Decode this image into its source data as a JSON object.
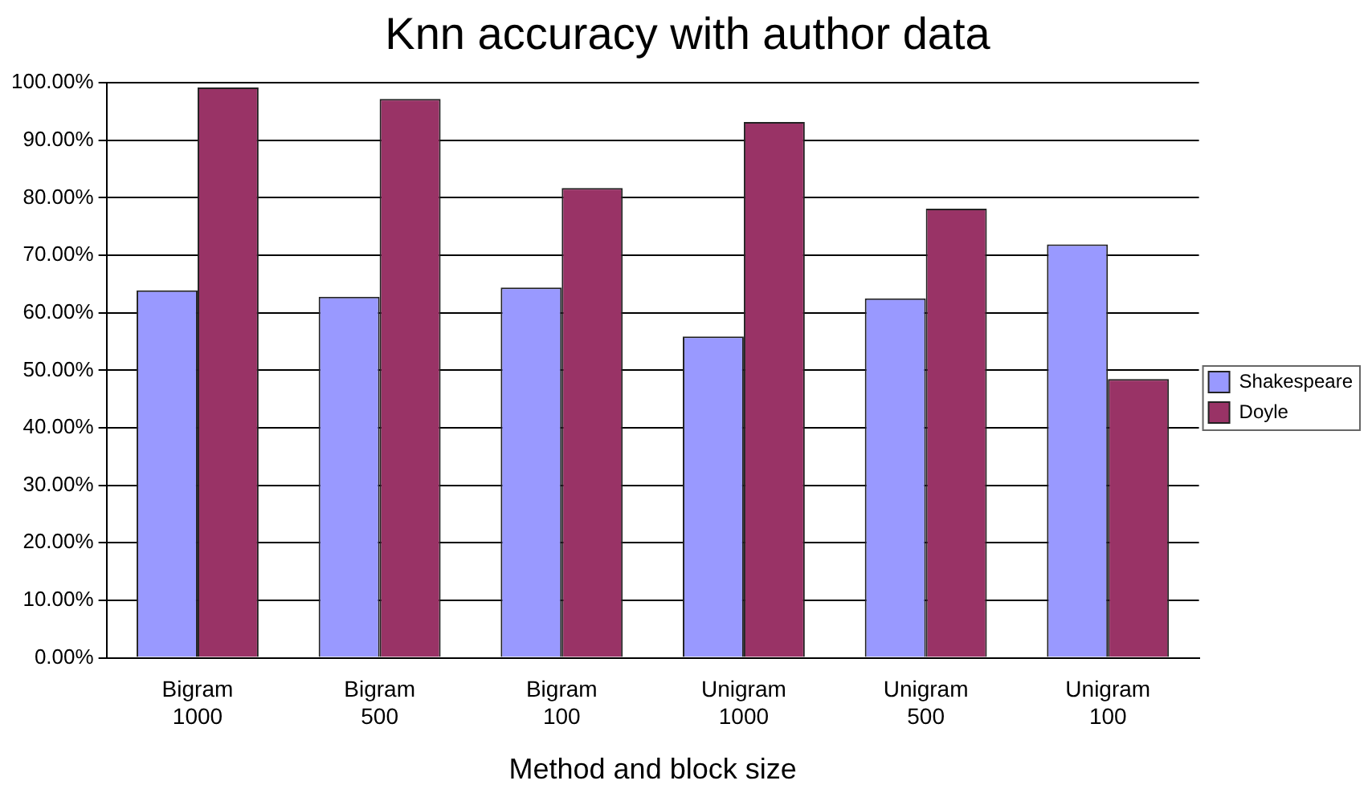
{
  "chart_data": {
    "type": "bar",
    "title": "Knn accuracy with author data",
    "xlabel": "Method and block size",
    "categories": [
      "Bigram 1000",
      "Bigram 500",
      "Bigram 100",
      "Unigram 1000",
      "Unigram 500",
      "Unigram 100"
    ],
    "series": [
      {
        "name": "Shakespeare",
        "color": "#9999ff",
        "values": [
          63.9,
          62.8,
          64.4,
          55.9,
          62.5,
          71.9
        ]
      },
      {
        "name": "Doyle",
        "color": "#993366",
        "values": [
          99.2,
          97.2,
          81.7,
          93.2,
          78.1,
          48.5
        ]
      }
    ],
    "ylim": [
      0,
      100
    ],
    "yticks": [
      {
        "value": 0,
        "label": "0.00%"
      },
      {
        "value": 10,
        "label": "10.00%"
      },
      {
        "value": 20,
        "label": "20.00%"
      },
      {
        "value": 30,
        "label": "30.00%"
      },
      {
        "value": 40,
        "label": "40.00%"
      },
      {
        "value": 50,
        "label": "50.00%"
      },
      {
        "value": 60,
        "label": "60.00%"
      },
      {
        "value": 70,
        "label": "70.00%"
      },
      {
        "value": 80,
        "label": "80.00%"
      },
      {
        "value": 90,
        "label": "90.00%"
      },
      {
        "value": 100,
        "label": "100.00%"
      }
    ],
    "grid": "y",
    "legend": "right"
  }
}
